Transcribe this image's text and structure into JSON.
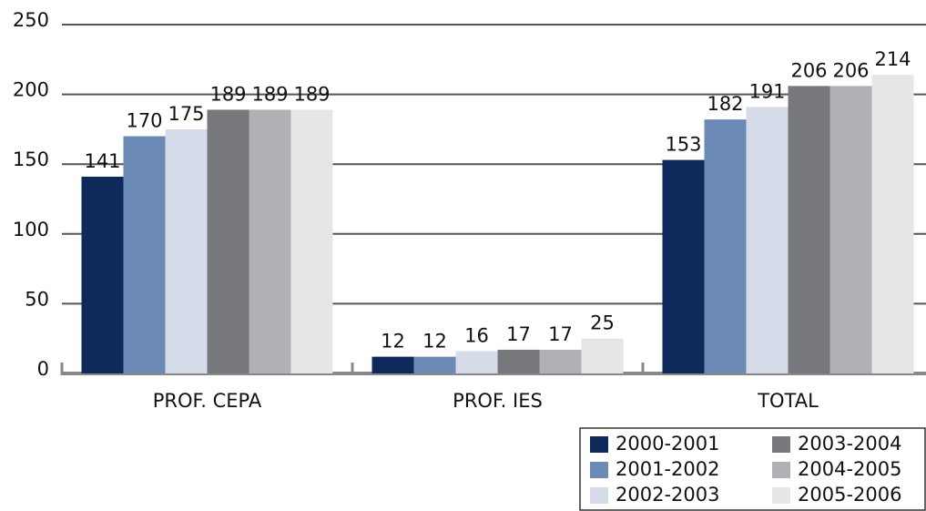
{
  "chart_data": {
    "type": "bar",
    "categories": [
      "PROF. CEPA",
      "PROF. IES",
      "TOTAL"
    ],
    "series": [
      {
        "name": "2000-2001",
        "color": "#0d2a5a",
        "values": [
          141,
          12,
          153
        ]
      },
      {
        "name": "2001-2002",
        "color": "#6b8ab5",
        "values": [
          170,
          12,
          182
        ]
      },
      {
        "name": "2002-2003",
        "color": "#d5dbe8",
        "values": [
          175,
          16,
          191
        ]
      },
      {
        "name": "2003-2004",
        "color": "#77787c",
        "values": [
          189,
          17,
          206
        ]
      },
      {
        "name": "2004-2005",
        "color": "#b0b1b5",
        "values": [
          189,
          17,
          206
        ]
      },
      {
        "name": "2005-2006",
        "color": "#e6e6e8",
        "values": [
          189,
          25,
          214
        ]
      }
    ],
    "ylim": [
      0,
      250
    ],
    "yticks": [
      0,
      50,
      100,
      150,
      200,
      250
    ],
    "grid": true,
    "legend": "bottom-right"
  }
}
